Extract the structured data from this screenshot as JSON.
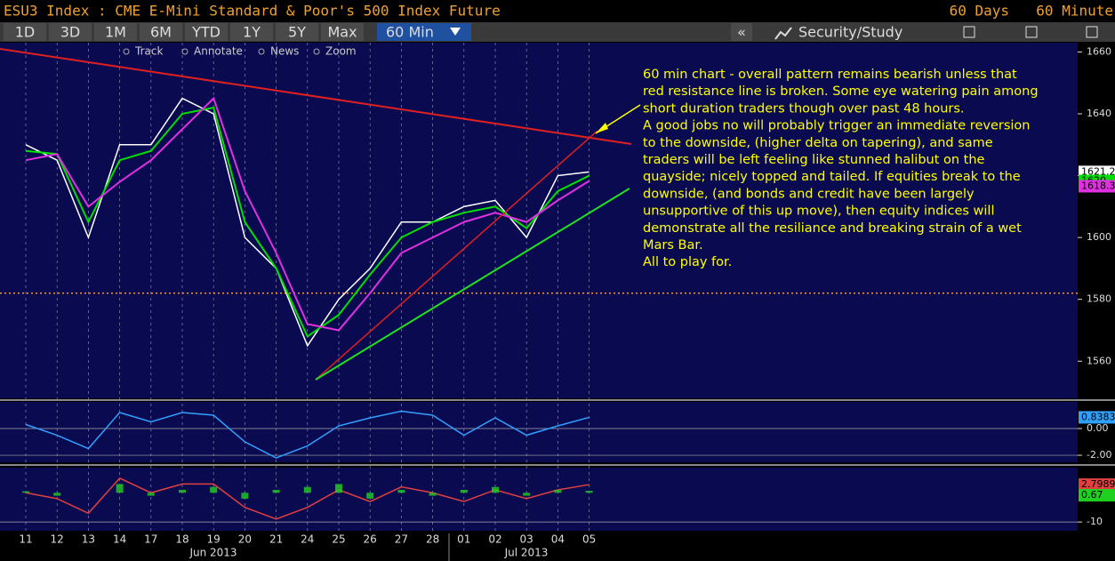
{
  "header": {
    "title": "ESU3 Index : CME E-Mini Standard & Poor's 500 Index Future",
    "period": "60 Days",
    "interval": "60 Minute"
  },
  "toolbar": {
    "buttons": [
      "1D",
      "3D",
      "1M",
      "6M",
      "YTD",
      "1Y",
      "5Y",
      "Max"
    ],
    "active": "60 Min",
    "collapse": "«",
    "study": "Security/Study"
  },
  "subtoolbar": [
    "Track",
    "Annotate",
    "News",
    "Zoom"
  ],
  "annotation": [
    "60 min chart - overall pattern remains bearish unless that",
    "red resistance line is broken. Some eye watering pain among",
    "short duration traders though over past 48 hours.",
    "A good jobs no will probably trigger an immediate reversion",
    "to the downside, (higher delta on tapering), and same",
    "traders will be left feeling like stunned halibut on the",
    "quayside; nicely topped and tailed. If equities break to the",
    "downside, (and bonds and credit have been largely",
    "unsupportive of this up move), then equity indices will",
    "demonstrate all the resiliance and breaking strain of a wet",
    "Mars Bar.",
    "All to play for."
  ],
  "months": [
    "Jun 2013",
    "Jul 2013"
  ],
  "chart_data": [
    {
      "type": "line",
      "categories": [
        "11",
        "12",
        "13",
        "14",
        "17",
        "18",
        "19",
        "20",
        "21",
        "24",
        "25",
        "26",
        "27",
        "28",
        "01",
        "02",
        "03",
        "04",
        "05"
      ],
      "ylim": [
        1548,
        1663
      ],
      "yticks": [
        1560,
        1580,
        1600,
        1620,
        1640,
        1660
      ],
      "reference_line": 1582,
      "series": [
        {
          "color": "#ffffff",
          "values": [
            1630,
            1625,
            1600,
            1630,
            1630,
            1645,
            1640,
            1600,
            1590,
            1565,
            1580,
            1590,
            1605,
            1605,
            1610,
            1612,
            1600,
            1620,
            1621.2
          ]
        },
        {
          "color": "#00e000",
          "values": [
            1628,
            1627,
            1605,
            1625,
            1628,
            1640,
            1642,
            1605,
            1590,
            1568,
            1575,
            1588,
            1600,
            1605,
            1608,
            1610,
            1603,
            1615,
            1620
          ]
        },
        {
          "color": "#e030e0",
          "values": [
            1625,
            1627,
            1610,
            1618,
            1625,
            1635,
            1645,
            1615,
            1595,
            1572,
            1570,
            1582,
            1595,
            1600,
            1605,
            1608,
            1605,
            1612,
            1618.3
          ]
        }
      ]
    },
    {
      "type": "line",
      "ylim": [
        -2.53,
        2
      ],
      "yticks": [
        {
          "value": 0,
          "label": "0.00"
        },
        {
          "value": -2,
          "label": "-2.00"
        }
      ],
      "series": [
        {
          "color": "#30a0ff",
          "values": [
            0.3,
            -0.5,
            -1.5,
            1.2,
            0.5,
            1.2,
            1.0,
            -1,
            -2.2,
            -1.3,
            0.2,
            0.8,
            1.3,
            1.0,
            -0.5,
            0.8,
            -0.5,
            0.2,
            0.8383
          ]
        }
      ]
    },
    {
      "type": "line",
      "ylim": [
        -13,
        8.6
      ],
      "yticks": [
        -10
      ],
      "series": [
        {
          "color": "#e04040",
          "values": [
            0,
            -2,
            -7,
            5,
            0,
            3,
            3,
            -5,
            -9,
            -5,
            1,
            -3,
            2,
            0,
            -3,
            1,
            -2,
            1,
            2.7989
          ]
        },
        {
          "type": "bar",
          "color": "#20d020",
          "values": [
            0.5,
            -1,
            0,
            3,
            -1,
            1,
            2,
            -2,
            1,
            2,
            3,
            -2,
            1,
            -1,
            1,
            2,
            -1,
            1,
            0.67
          ]
        }
      ]
    }
  ]
}
